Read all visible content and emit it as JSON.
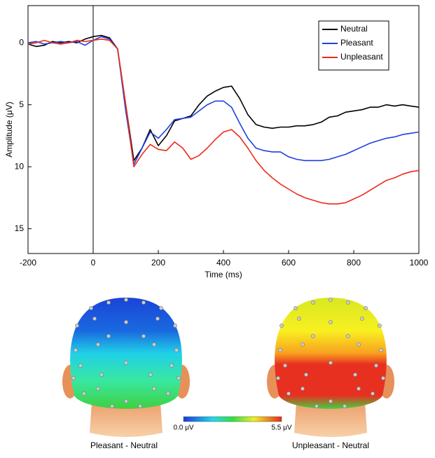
{
  "chart_data": {
    "type": "line",
    "x_label": "Time (ms)",
    "y_label": "Amplitude (μV)",
    "x": [
      -200,
      -175,
      -150,
      -125,
      -100,
      -75,
      -50,
      -25,
      0,
      25,
      50,
      75,
      100,
      125,
      150,
      175,
      200,
      225,
      250,
      275,
      300,
      325,
      350,
      375,
      400,
      425,
      450,
      475,
      500,
      525,
      550,
      575,
      600,
      625,
      650,
      675,
      700,
      725,
      750,
      775,
      800,
      825,
      850,
      875,
      900,
      925,
      950,
      975,
      1000
    ],
    "series": [
      {
        "name": "Neutral",
        "color": "#000000",
        "values": [
          0.1,
          0.3,
          0.2,
          -0.1,
          0,
          -0.1,
          0,
          -0.3,
          -0.5,
          -0.6,
          -0.4,
          0.5,
          5,
          9.5,
          8.5,
          7,
          8.3,
          7.5,
          6.3,
          6.1,
          5.9,
          5,
          4.3,
          3.9,
          3.6,
          3.5,
          4.5,
          5.8,
          6.6,
          6.8,
          6.9,
          6.8,
          6.8,
          6.7,
          6.7,
          6.6,
          6.4,
          6.0,
          5.9,
          5.6,
          5.5,
          5.4,
          5.2,
          5.2,
          5.0,
          5.1,
          5.0,
          5.1,
          5.2
        ]
      },
      {
        "name": "Pleasant",
        "color": "#1f3fe0",
        "values": [
          0,
          -0.1,
          0.1,
          0,
          -0.1,
          0,
          -0.1,
          0.2,
          -0.2,
          -0.5,
          -0.3,
          0.5,
          5.5,
          9.8,
          8.5,
          7.2,
          7.7,
          7.0,
          6.2,
          6.1,
          6.0,
          5.5,
          5.0,
          4.7,
          4.7,
          5.2,
          6.5,
          7.7,
          8.5,
          8.7,
          8.8,
          8.8,
          9.2,
          9.4,
          9.5,
          9.5,
          9.5,
          9.4,
          9.2,
          9.0,
          8.7,
          8.4,
          8.1,
          7.9,
          7.7,
          7.6,
          7.4,
          7.3,
          7.2
        ]
      },
      {
        "name": "Unpleasant",
        "color": "#ee2a1a",
        "values": [
          0.1,
          0,
          -0.2,
          0,
          0.1,
          0,
          -0.2,
          -0.1,
          -0.2,
          -0.3,
          -0.2,
          0.5,
          5,
          10,
          9.0,
          8.2,
          8.6,
          8.7,
          8.0,
          8.5,
          9.4,
          9.1,
          8.5,
          7.8,
          7.2,
          7.0,
          7.6,
          8.5,
          9.5,
          10.3,
          10.9,
          11.4,
          11.8,
          12.2,
          12.5,
          12.7,
          12.9,
          13.0,
          13.0,
          12.9,
          12.6,
          12.3,
          11.9,
          11.5,
          11.1,
          10.9,
          10.6,
          10.4,
          10.3
        ]
      }
    ],
    "xlim": [
      -200,
      1000
    ],
    "xticks": [
      -200,
      0,
      200,
      400,
      600,
      800,
      1000
    ],
    "ylim": [
      -3,
      17
    ],
    "yticks": [
      0,
      5,
      10,
      15
    ],
    "y_reversed": true,
    "vertical_line_at": 0,
    "legend": "top-right"
  },
  "topomaps": {
    "maps": [
      {
        "label": "Pleasant - Neutral"
      },
      {
        "label": "Unpleasant - Neutral"
      }
    ],
    "colorbar": {
      "min_label": "0.0 μV",
      "max_label": "5.5 μV"
    }
  }
}
